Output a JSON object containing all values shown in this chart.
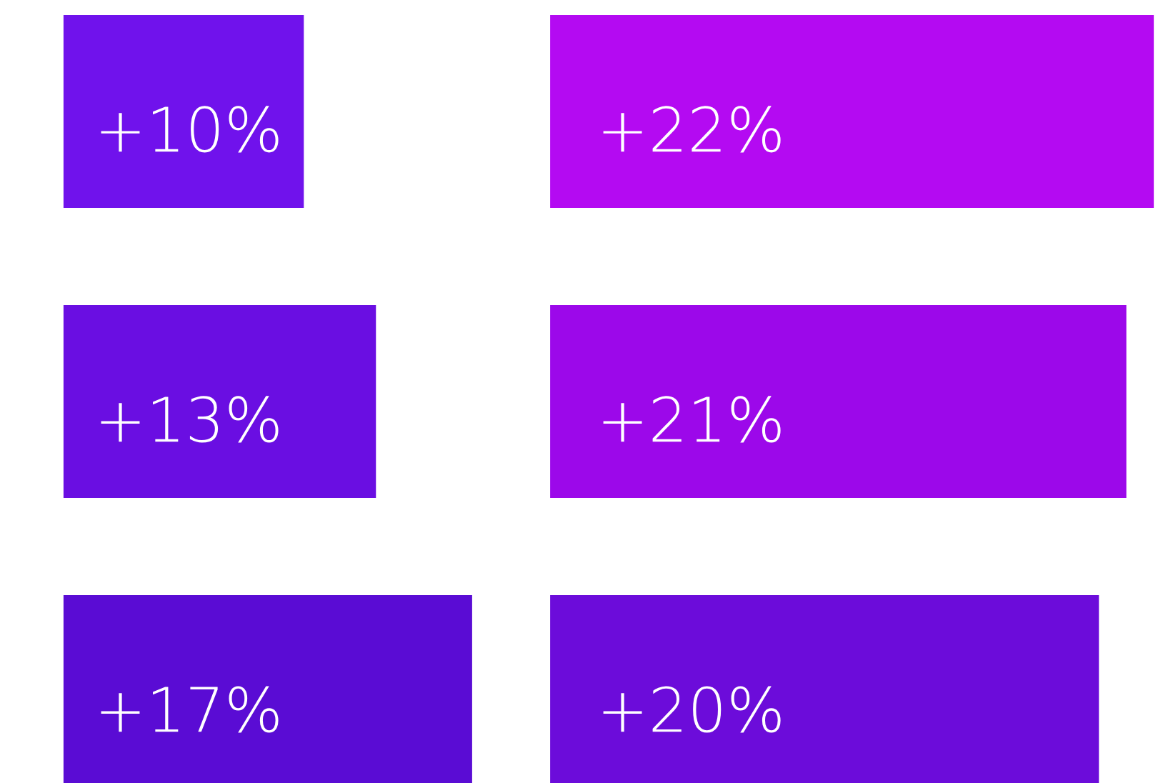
{
  "chart_data": [
    {
      "type": "bar",
      "orientation": "horizontal",
      "categories": [
        null,
        null,
        null
      ],
      "values": [
        10,
        13,
        17
      ],
      "colors": [
        "#7012ec",
        "#6a0ee2",
        "#5a0cd4"
      ],
      "value_labels": [
        "+10%",
        "+13%",
        "+17%"
      ]
    },
    {
      "type": "bar",
      "orientation": "horizontal",
      "categories": [
        null,
        null,
        null
      ],
      "values": [
        22,
        21,
        20
      ],
      "colors": [
        "#b40af2",
        "#9c08ea",
        "#6c0cda"
      ],
      "value_labels": [
        "+22%",
        "+21%",
        "+20%"
      ]
    }
  ]
}
